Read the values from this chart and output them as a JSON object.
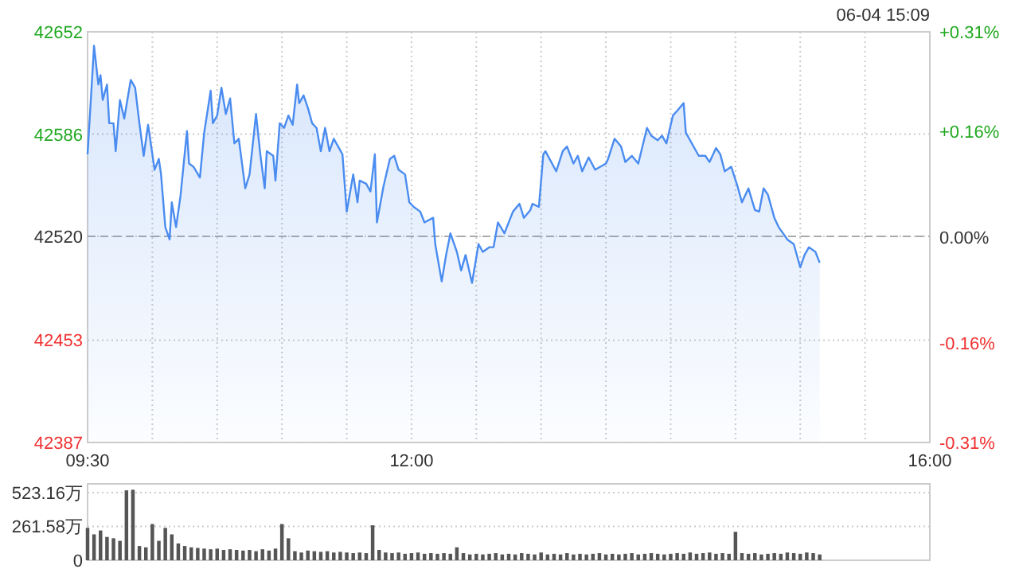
{
  "chart_data": [
    {
      "type": "area",
      "x": [
        9.5,
        9.55,
        9.583,
        9.6,
        9.617,
        9.65,
        9.667,
        9.7,
        9.717,
        9.75,
        9.783,
        9.833,
        9.867,
        9.9,
        9.933,
        9.967,
        9.983,
        10.017,
        10.05,
        10.067,
        10.1,
        10.133,
        10.15,
        10.183,
        10.217,
        10.267,
        10.283,
        10.317,
        10.367,
        10.4,
        10.45,
        10.467,
        10.5,
        10.533,
        10.567,
        10.6,
        10.633,
        10.667,
        10.717,
        10.75,
        10.8,
        10.833,
        10.867,
        10.883,
        10.933,
        10.95,
        10.983,
        11.017,
        11.05,
        11.083,
        11.117,
        11.133,
        11.167,
        11.2,
        11.233,
        11.267,
        11.3,
        11.333,
        11.367,
        11.4,
        11.467,
        11.5,
        11.55,
        11.583,
        11.6,
        11.65,
        11.683,
        11.717,
        11.733,
        11.783,
        11.833,
        11.867,
        11.9,
        11.95,
        11.983,
        12.017,
        12.067,
        12.1,
        12.167,
        12.183,
        12.233,
        12.267,
        12.3,
        12.35,
        12.383,
        12.417,
        12.467,
        12.517,
        12.55,
        12.6,
        12.633,
        12.667,
        12.717,
        12.783,
        12.833,
        12.867,
        12.917,
        12.933,
        12.983,
        13.017,
        13.033,
        13.117,
        13.167,
        13.2,
        13.25,
        13.283,
        13.317,
        13.367,
        13.417,
        13.5,
        13.517,
        13.567,
        13.617,
        13.65,
        13.7,
        13.75,
        13.817,
        13.85,
        13.9,
        13.933,
        13.967,
        14.017,
        14.05,
        14.1,
        14.117,
        14.183,
        14.217,
        14.267,
        14.3,
        14.35,
        14.383,
        14.417,
        14.467,
        14.517,
        14.55,
        14.6,
        14.65,
        14.683,
        14.717,
        14.75,
        14.8,
        14.833,
        14.867,
        14.9,
        14.95,
        15,
        15.033,
        15.067,
        15.117,
        15.15
      ],
      "series": [
        {
          "color": "#4a8cf0",
          "values": [
            42573,
            42643,
            42618,
            42624,
            42608,
            42618,
            42593,
            42593,
            42575,
            42608,
            42596,
            42621,
            42616,
            42593,
            42572,
            42592,
            42583,
            42563,
            42570,
            42560,
            42526,
            42518,
            42542,
            42526,
            42546,
            42588,
            42567,
            42565,
            42558,
            42587,
            42614,
            42593,
            42598,
            42616,
            42599,
            42609,
            42580,
            42583,
            42551,
            42560,
            42599,
            42573,
            42551,
            42575,
            42572,
            42556,
            42593,
            42590,
            42598,
            42592,
            42618,
            42606,
            42611,
            42603,
            42593,
            42590,
            42575,
            42590,
            42575,
            42583,
            42573,
            42536,
            42560,
            42542,
            42556,
            42554,
            42549,
            42573,
            42529,
            42552,
            42570,
            42572,
            42563,
            42560,
            42542,
            42539,
            42536,
            42529,
            42532,
            42515,
            42491,
            42508,
            42522,
            42510,
            42498,
            42508,
            42490,
            42515,
            42510,
            42513,
            42513,
            42529,
            42522,
            42536,
            42541,
            42532,
            42537,
            42541,
            42539,
            42573,
            42575,
            42562,
            42575,
            42578,
            42567,
            42572,
            42562,
            42571,
            42563,
            42567,
            42570,
            42583,
            42578,
            42568,
            42572,
            42567,
            42590,
            42585,
            42582,
            42585,
            42580,
            42598,
            42601,
            42606,
            42587,
            42577,
            42572,
            42572,
            42568,
            42577,
            42573,
            42562,
            42565,
            42552,
            42542,
            42551,
            42537,
            42536,
            42551,
            42547,
            42532,
            42526,
            42522,
            42518,
            42515,
            42500,
            42508,
            42513,
            42510,
            42503
          ]
        }
      ],
      "xlim": [
        9.5,
        16
      ],
      "xticks": [
        {
          "value": 9.5,
          "label": "09:30"
        },
        {
          "value": 10,
          "label": null
        },
        {
          "value": 10.5,
          "label": null
        },
        {
          "value": 11,
          "label": null
        },
        {
          "value": 11.5,
          "label": null
        },
        {
          "value": 12,
          "label": "12:00"
        },
        {
          "value": 12.5,
          "label": null
        },
        {
          "value": 13,
          "label": null
        },
        {
          "value": 13.5,
          "label": null
        },
        {
          "value": 14,
          "label": null
        },
        {
          "value": 14.5,
          "label": null
        },
        {
          "value": 15,
          "label": null
        },
        {
          "value": 15.5,
          "label": null
        },
        {
          "value": 16,
          "label": "16:00"
        }
      ],
      "ylim": [
        42387,
        42652
      ],
      "yticks": [
        42387,
        42453,
        42520,
        42586,
        42652
      ],
      "y2lim": [
        -0.31,
        0.31
      ],
      "y2ticks": [
        {
          "value": -0.31,
          "label": "-0.31%"
        },
        {
          "value": -0.16,
          "label": "-0.16%"
        },
        {
          "value": 0,
          "label": "0.00%"
        },
        {
          "value": 0.16,
          "label": "+0.16%"
        },
        {
          "value": 0.31,
          "label": "+0.31%"
        }
      ],
      "ref_lines": [
        {
          "axis": "y",
          "value": 42520,
          "color": "#aaaaaa",
          "line_style": "dashed"
        }
      ],
      "grid": true,
      "annotations": [
        "06-04 15:09"
      ]
    },
    {
      "type": "bar",
      "x": [
        9.5,
        9.55,
        9.6,
        9.65,
        9.7,
        9.75,
        9.8,
        9.85,
        9.9,
        9.95,
        10,
        10.05,
        10.1,
        10.15,
        10.2,
        10.25,
        10.3,
        10.35,
        10.4,
        10.45,
        10.5,
        10.55,
        10.6,
        10.65,
        10.7,
        10.75,
        10.8,
        10.85,
        10.9,
        10.95,
        11,
        11.05,
        11.1,
        11.15,
        11.2,
        11.25,
        11.3,
        11.35,
        11.4,
        11.45,
        11.5,
        11.55,
        11.6,
        11.65,
        11.7,
        11.75,
        11.8,
        11.85,
        11.9,
        11.95,
        12,
        12.05,
        12.1,
        12.15,
        12.2,
        12.25,
        12.3,
        12.35,
        12.4,
        12.45,
        12.5,
        12.55,
        12.6,
        12.65,
        12.7,
        12.75,
        12.8,
        12.85,
        12.9,
        12.95,
        13,
        13.05,
        13.1,
        13.15,
        13.2,
        13.25,
        13.3,
        13.35,
        13.4,
        13.45,
        13.5,
        13.55,
        13.6,
        13.65,
        13.7,
        13.75,
        13.8,
        13.85,
        13.9,
        13.95,
        14,
        14.05,
        14.1,
        14.15,
        14.2,
        14.25,
        14.3,
        14.35,
        14.4,
        14.45,
        14.5,
        14.55,
        14.6,
        14.65,
        14.7,
        14.75,
        14.8,
        14.85,
        14.9,
        14.95,
        15,
        15.05,
        15.1,
        15.15
      ],
      "series": [
        {
          "color": "#555555",
          "values": [
            250,
            200,
            230,
            180,
            170,
            150,
            540,
            545,
            110,
            100,
            280,
            150,
            250,
            200,
            130,
            110,
            100,
            95,
            90,
            85,
            90,
            80,
            85,
            80,
            75,
            80,
            70,
            85,
            75,
            90,
            280,
            170,
            70,
            60,
            75,
            70,
            65,
            70,
            60,
            65,
            60,
            55,
            60,
            55,
            270,
            80,
            60,
            55,
            60,
            50,
            55,
            60,
            50,
            55,
            50,
            55,
            50,
            100,
            55,
            45,
            50,
            45,
            50,
            55,
            45,
            50,
            45,
            55,
            50,
            45,
            60,
            45,
            50,
            45,
            55,
            45,
            50,
            45,
            50,
            55,
            45,
            50,
            45,
            50,
            55,
            45,
            50,
            55,
            50,
            45,
            50,
            55,
            50,
            60,
            50,
            55,
            60,
            50,
            55,
            50,
            220,
            55,
            50,
            55,
            45,
            50,
            55,
            50,
            60,
            55,
            50,
            60,
            55,
            45
          ]
        }
      ],
      "xlim": [
        9.5,
        16
      ],
      "ylim": [
        0,
        590
      ],
      "yticks": [
        0,
        {
          "value": 261.58,
          "label": "261.58万"
        },
        {
          "value": 523.16,
          "label": "523.16万"
        }
      ],
      "grid": "y",
      "tick_labels": "y"
    }
  ]
}
